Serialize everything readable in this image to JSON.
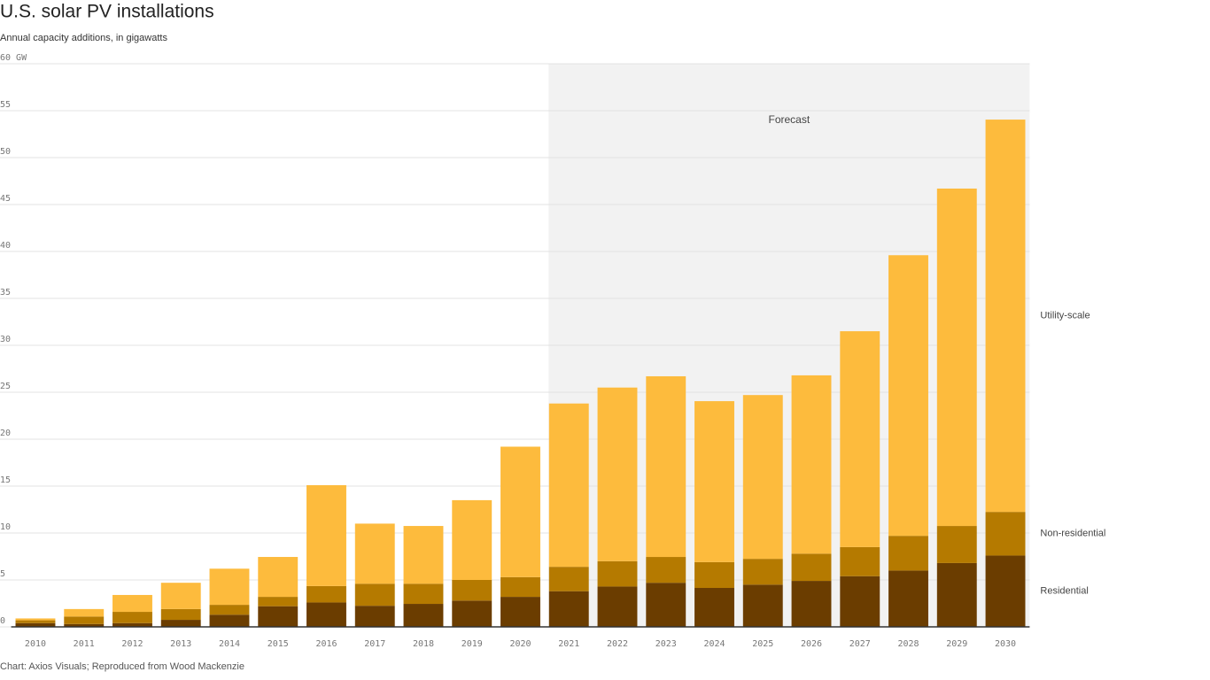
{
  "chart_data": {
    "type": "stacked-bar",
    "title": "U.S. solar PV installations",
    "subtitle": "Annual capacity additions, in gigawatts",
    "source": "Chart: Axios Visuals; Reproduced from Wood Mackenzie",
    "annotation": "Forecast",
    "shaded_from": "2021",
    "categories": [
      "2010",
      "2011",
      "2012",
      "2013",
      "2014",
      "2015",
      "2016",
      "2017",
      "2018",
      "2019",
      "2020",
      "2021",
      "2022",
      "2023",
      "2024",
      "2025",
      "2026",
      "2027",
      "2028",
      "2029",
      "2030"
    ],
    "series": [
      {
        "name": "Residential",
        "color": "#6b3d00",
        "values": [
          0.4,
          0.3,
          0.4,
          0.75,
          1.3,
          2.2,
          2.6,
          2.25,
          2.45,
          2.8,
          3.2,
          3.8,
          4.3,
          4.7,
          4.15,
          4.5,
          4.9,
          5.4,
          6.0,
          6.8,
          7.6
        ]
      },
      {
        "name": "Non-residential",
        "color": "#b57a00",
        "values": [
          0.3,
          0.8,
          1.2,
          1.15,
          1.05,
          1.0,
          1.75,
          2.35,
          2.15,
          2.2,
          2.1,
          2.6,
          2.7,
          2.75,
          2.75,
          2.75,
          2.9,
          3.1,
          3.7,
          3.95,
          4.65
        ]
      },
      {
        "name": "Utility-scale",
        "color": "#fdbb3d",
        "values": [
          0.2,
          0.8,
          1.8,
          2.8,
          3.85,
          4.25,
          10.75,
          6.4,
          6.15,
          8.5,
          13.9,
          17.4,
          18.5,
          19.25,
          17.15,
          17.45,
          19.0,
          23.0,
          29.9,
          35.95,
          41.8
        ]
      }
    ],
    "ylim": [
      0,
      60
    ],
    "yticks": [
      0,
      5,
      10,
      15,
      20,
      25,
      30,
      35,
      40,
      45,
      50,
      55,
      {
        "value": 60,
        "label": "60 GW"
      }
    ],
    "grid": true
  }
}
